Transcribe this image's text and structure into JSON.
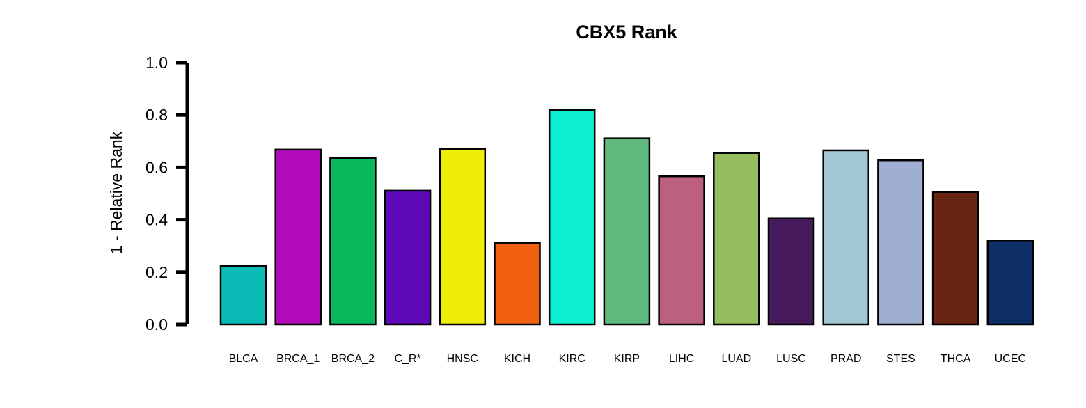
{
  "chart_data": {
    "type": "bar",
    "title": "CBX5 Rank",
    "xlabel": "",
    "ylabel": "1 - Relative Rank",
    "ylim": [
      0,
      1
    ],
    "yticks": [
      "0.0",
      "0.2",
      "0.4",
      "0.6",
      "0.8",
      "1.0"
    ],
    "grid": false,
    "categories": [
      "BLCA",
      "BRCA_1",
      "BRCA_2",
      "C_R*",
      "HNSC",
      "KICH",
      "KIRC",
      "KIRP",
      "LIHC",
      "LUAD",
      "LUSC",
      "PRAD",
      "STES",
      "THCA",
      "UCEC"
    ],
    "values": [
      0.223,
      0.668,
      0.635,
      0.511,
      0.671,
      0.312,
      0.819,
      0.711,
      0.566,
      0.655,
      0.405,
      0.665,
      0.627,
      0.506,
      0.321
    ],
    "colors": [
      "#0ABAB5",
      "#B20CBA",
      "#09B85A",
      "#5E09B7",
      "#EEEE0A",
      "#F06010",
      "#0DF0D2",
      "#60BA80",
      "#BC6080",
      "#96BC60",
      "#471A5E",
      "#A1C6D4",
      "#A0AED2",
      "#672512",
      "#0E2F66"
    ]
  }
}
